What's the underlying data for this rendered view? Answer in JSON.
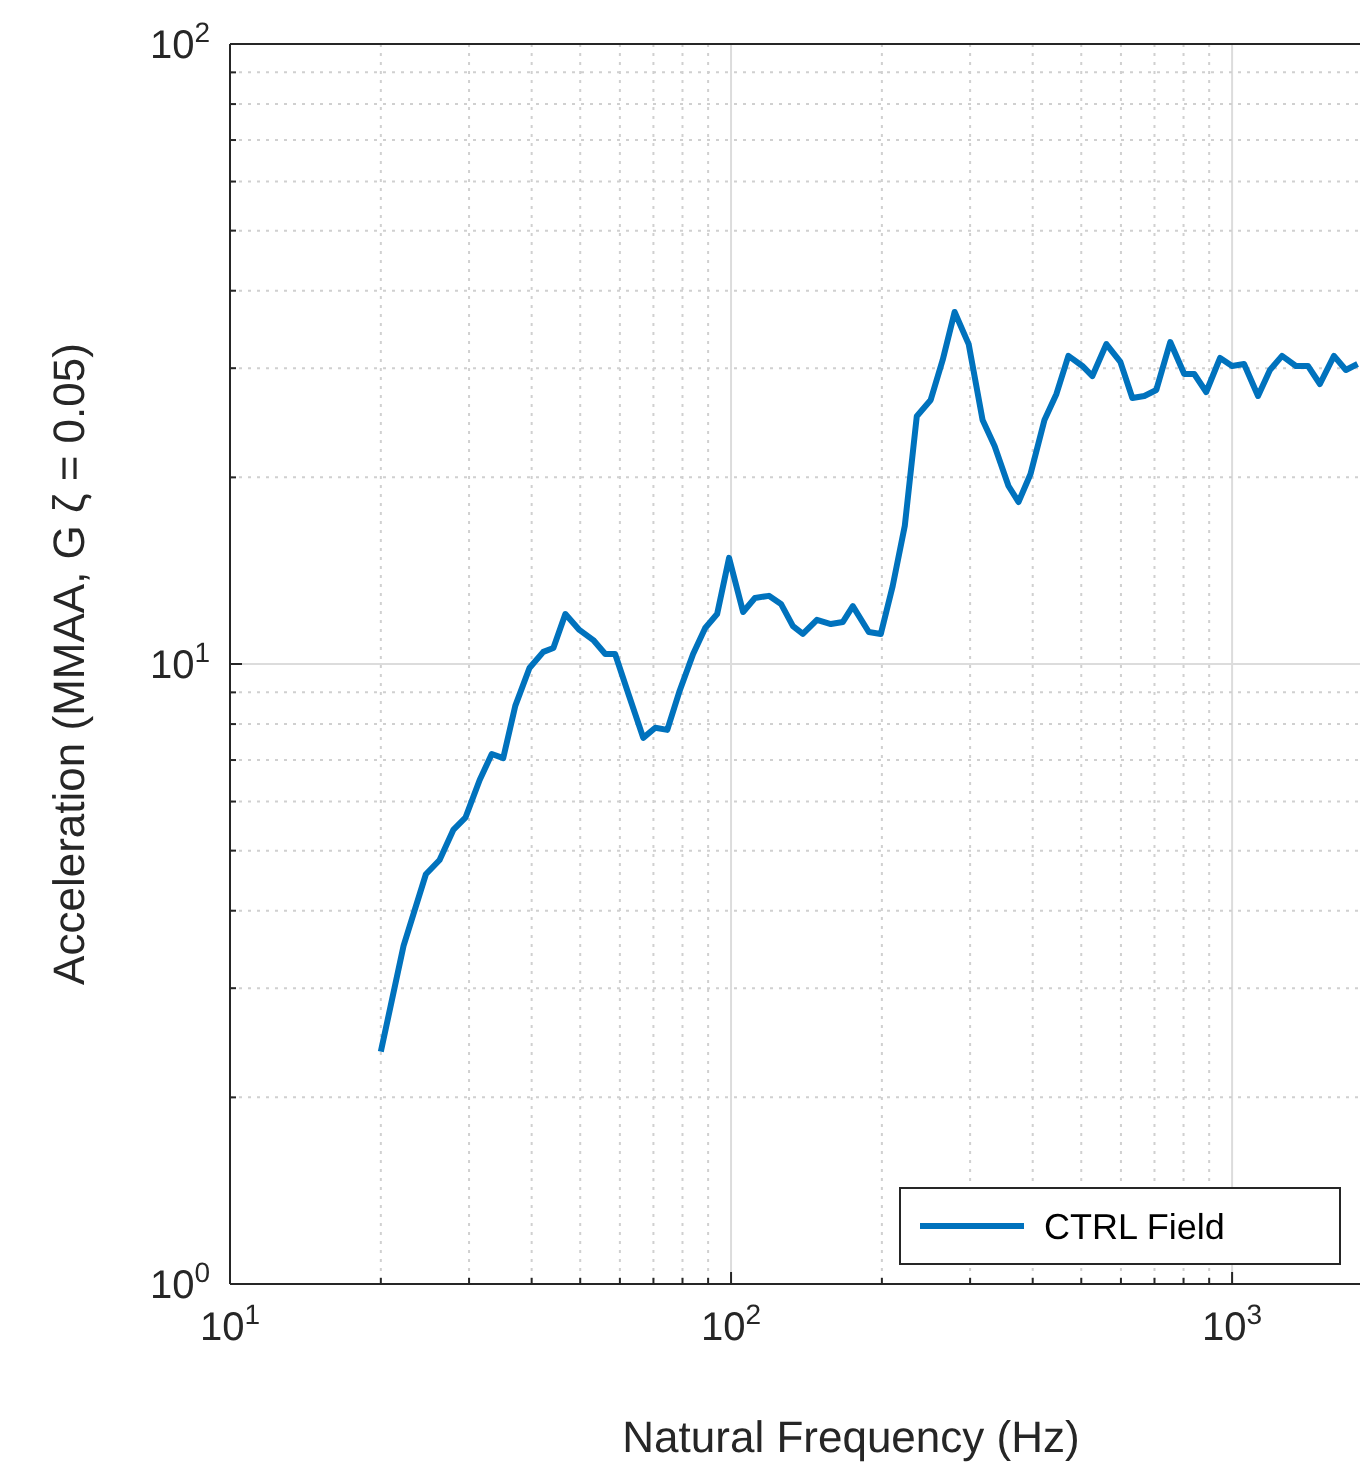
{
  "chart_data": {
    "type": "line",
    "xlabel": "Natural Frequency (Hz)",
    "ylabel": "Acceleration (MMAA, G ζ = 0.05)",
    "log": "xy",
    "grid": true,
    "legend": "bottom right",
    "line_style": "solid",
    "marker": "none",
    "xlim": [
      10,
      1800
    ],
    "ylim": [
      1,
      100
    ],
    "xticks": [
      {
        "value": 10,
        "label": "10$^{1}$"
      },
      {
        "value": 20,
        "label": null
      },
      {
        "value": 30,
        "label": null
      },
      {
        "value": 40,
        "label": null
      },
      {
        "value": 50,
        "label": null
      },
      {
        "value": 60,
        "label": null
      },
      {
        "value": 70,
        "label": null
      },
      {
        "value": 80,
        "label": null
      },
      {
        "value": 90,
        "label": null
      },
      {
        "value": 100,
        "label": "10$^{2}$"
      },
      {
        "value": 200,
        "label": null
      },
      {
        "value": 300,
        "label": null
      },
      {
        "value": 400,
        "label": null
      },
      {
        "value": 500,
        "label": null
      },
      {
        "value": 600,
        "label": null
      },
      {
        "value": 700,
        "label": null
      },
      {
        "value": 800,
        "label": null
      },
      {
        "value": 900,
        "label": null
      },
      {
        "value": 1000,
        "label": "10$^{3}$"
      }
    ],
    "yticks": [
      {
        "value": 1,
        "label": "10$^{0}$"
      },
      {
        "value": 2,
        "label": null
      },
      {
        "value": 3,
        "label": null
      },
      {
        "value": 4,
        "label": null
      },
      {
        "value": 5,
        "label": null
      },
      {
        "value": 6,
        "label": null
      },
      {
        "value": 7,
        "label": null
      },
      {
        "value": 8,
        "label": null
      },
      {
        "value": 9,
        "label": null
      },
      {
        "value": 10,
        "label": "10$^{1}$"
      },
      {
        "value": 20,
        "label": null
      },
      {
        "value": 30,
        "label": null
      },
      {
        "value": 40,
        "label": null
      },
      {
        "value": 50,
        "label": null
      },
      {
        "value": 60,
        "label": null
      },
      {
        "value": 70,
        "label": null
      },
      {
        "value": 80,
        "label": null
      },
      {
        "value": 90,
        "label": null
      },
      {
        "value": 100,
        "label": "10$^{2}$"
      }
    ],
    "series": [
      {
        "name": "CTRL Field",
        "color": "#0072bd",
        "x": [
          20,
          22.2,
          24.6,
          26.2,
          27.9,
          29.5,
          31.5,
          33.3,
          35.1,
          37.1,
          39.6,
          42.2,
          44.2,
          46.7,
          49.8,
          53.1,
          56.1,
          58.7,
          62.6,
          66.8,
          70.6,
          74.6,
          78.8,
          84,
          88.8,
          93.8,
          99.1,
          105.7,
          111.6,
          119,
          125.8,
          132.9,
          139.1,
          148.4,
          158.2,
          167.2,
          175,
          188.3,
          199,
          210.2,
          222.2,
          234.8,
          250.3,
          264.5,
          279.4,
          298,
          317.7,
          335.7,
          357.9,
          374.7,
          396,
          422.2,
          446.1,
          471.3,
          502.6,
          526.2,
          561,
          598.4,
          632.3,
          668.1,
          705.9,
          752.6,
          802.6,
          840.3,
          887.8,
          946.4,
          1000,
          1056.6,
          1126.6,
          1190,
          1258,
          1341,
          1417,
          1497,
          1597,
          1687,
          1780
        ],
        "values": [
          2.37,
          3.51,
          4.58,
          4.83,
          5.4,
          5.65,
          6.5,
          7.16,
          7.05,
          8.56,
          9.85,
          10.46,
          10.61,
          12.04,
          11.35,
          10.93,
          10.38,
          10.38,
          8.88,
          7.6,
          7.89,
          7.83,
          9.01,
          10.38,
          11.43,
          12.04,
          14.83,
          12.13,
          12.78,
          12.88,
          12.5,
          11.51,
          11.18,
          11.78,
          11.6,
          11.69,
          12.4,
          11.26,
          11.18,
          13.36,
          16.7,
          25.1,
          26.66,
          30.93,
          36.97,
          32.81,
          24.75,
          22.47,
          19.37,
          18.25,
          20.25,
          24.75,
          27.26,
          31.4,
          30.25,
          29.14,
          32.81,
          30.71,
          26.85,
          27.06,
          27.67,
          33.06,
          29.36,
          29.36,
          27.46,
          31.16,
          30.25,
          30.47,
          27.06,
          29.8,
          31.4,
          30.25,
          30.25,
          28.29,
          31.4,
          29.8,
          30.47
        ]
      }
    ]
  }
}
